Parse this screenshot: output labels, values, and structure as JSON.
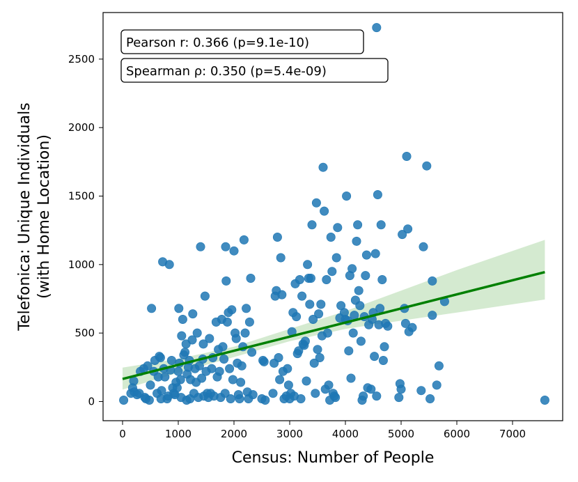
{
  "chart_data": {
    "type": "scatter",
    "xlabel": "Census: Number of People",
    "ylabel_line1": "Telefonica: Unique Individuals",
    "ylabel_line2": "(with Home Location)",
    "xlim": [
      -350,
      7900
    ],
    "ylim": [
      -140,
      2840
    ],
    "xticks": [
      0,
      1000,
      2000,
      3000,
      4000,
      5000,
      6000,
      7000
    ],
    "yticks": [
      0,
      500,
      1000,
      1500,
      2000,
      2500
    ],
    "pearson_text": "Pearson r: 0.366 (p=9.1e-10)",
    "spearman_text": "Spearman ρ: 0.350 (p=5.4e-09)",
    "point_color": "#1f77b4",
    "line_color": "#008000",
    "ci_color": "#b7dcb0",
    "regression": {
      "x_start": 0,
      "y_start": 165,
      "x_end": 7580,
      "y_end": 945
    },
    "confidence_band": {
      "x": [
        0,
        1000,
        2000,
        3000,
        4000,
        5000,
        6000,
        7580
      ],
      "lower": [
        88,
        210,
        325,
        440,
        530,
        590,
        650,
        745
      ],
      "upper": [
        248,
        312,
        400,
        530,
        660,
        810,
        960,
        1180
      ]
    },
    "points": [
      [
        20,
        10
      ],
      [
        150,
        60
      ],
      [
        180,
        100
      ],
      [
        200,
        150
      ],
      [
        210,
        70
      ],
      [
        260,
        50
      ],
      [
        300,
        60
      ],
      [
        320,
        220
      ],
      [
        380,
        240
      ],
      [
        400,
        30
      ],
      [
        420,
        20
      ],
      [
        450,
        260
      ],
      [
        480,
        10
      ],
      [
        500,
        120
      ],
      [
        520,
        680
      ],
      [
        560,
        220
      ],
      [
        580,
        300
      ],
      [
        620,
        60
      ],
      [
        640,
        180
      ],
      [
        660,
        330
      ],
      [
        680,
        320
      ],
      [
        690,
        20
      ],
      [
        700,
        80
      ],
      [
        720,
        1020
      ],
      [
        740,
        240
      ],
      [
        760,
        180
      ],
      [
        800,
        20
      ],
      [
        820,
        40
      ],
      [
        840,
        1000
      ],
      [
        860,
        230
      ],
      [
        880,
        300
      ],
      [
        900,
        100
      ],
      [
        920,
        60
      ],
      [
        940,
        50
      ],
      [
        960,
        140
      ],
      [
        980,
        100
      ],
      [
        1000,
        220
      ],
      [
        1010,
        680
      ],
      [
        1020,
        280
      ],
      [
        1040,
        160
      ],
      [
        1050,
        30
      ],
      [
        1060,
        480
      ],
      [
        1080,
        600
      ],
      [
        1100,
        340
      ],
      [
        1120,
        360
      ],
      [
        1140,
        420
      ],
      [
        1150,
        10
      ],
      [
        1160,
        200
      ],
      [
        1180,
        250
      ],
      [
        1200,
        300
      ],
      [
        1210,
        20
      ],
      [
        1220,
        160
      ],
      [
        1250,
        450
      ],
      [
        1260,
        640
      ],
      [
        1280,
        60
      ],
      [
        1300,
        240
      ],
      [
        1320,
        140
      ],
      [
        1340,
        500
      ],
      [
        1360,
        30
      ],
      [
        1380,
        260
      ],
      [
        1400,
        1130
      ],
      [
        1420,
        170
      ],
      [
        1440,
        310
      ],
      [
        1450,
        420
      ],
      [
        1460,
        40
      ],
      [
        1480,
        770
      ],
      [
        1500,
        220
      ],
      [
        1520,
        60
      ],
      [
        1540,
        30
      ],
      [
        1560,
        460
      ],
      [
        1580,
        60
      ],
      [
        1600,
        240
      ],
      [
        1620,
        320
      ],
      [
        1640,
        40
      ],
      [
        1680,
        580
      ],
      [
        1700,
        180
      ],
      [
        1720,
        380
      ],
      [
        1740,
        220
      ],
      [
        1760,
        30
      ],
      [
        1780,
        600
      ],
      [
        1800,
        400
      ],
      [
        1820,
        310
      ],
      [
        1840,
        60
      ],
      [
        1850,
        1130
      ],
      [
        1860,
        880
      ],
      [
        1880,
        580
      ],
      [
        1900,
        650
      ],
      [
        1920,
        240
      ],
      [
        1940,
        20
      ],
      [
        1960,
        670
      ],
      [
        1980,
        160
      ],
      [
        2000,
        1100
      ],
      [
        2020,
        500
      ],
      [
        2040,
        460
      ],
      [
        2060,
        280
      ],
      [
        2080,
        50
      ],
      [
        2100,
        20
      ],
      [
        2120,
        140
      ],
      [
        2140,
        260
      ],
      [
        2160,
        400
      ],
      [
        2180,
        1180
      ],
      [
        2200,
        500
      ],
      [
        2220,
        680
      ],
      [
        2240,
        70
      ],
      [
        2260,
        20
      ],
      [
        2280,
        580
      ],
      [
        2300,
        900
      ],
      [
        2320,
        360
      ],
      [
        2340,
        50
      ],
      [
        2500,
        20
      ],
      [
        2520,
        300
      ],
      [
        2540,
        290
      ],
      [
        2560,
        10
      ],
      [
        2700,
        60
      ],
      [
        2720,
        280
      ],
      [
        2740,
        770
      ],
      [
        2760,
        810
      ],
      [
        2780,
        1200
      ],
      [
        2800,
        320
      ],
      [
        2820,
        160
      ],
      [
        2840,
        1050
      ],
      [
        2860,
        780
      ],
      [
        2880,
        220
      ],
      [
        2900,
        20
      ],
      [
        2940,
        40
      ],
      [
        2960,
        240
      ],
      [
        2980,
        120
      ],
      [
        3000,
        20
      ],
      [
        3020,
        60
      ],
      [
        3040,
        510
      ],
      [
        3060,
        650
      ],
      [
        3080,
        40
      ],
      [
        3100,
        860
      ],
      [
        3120,
        620
      ],
      [
        3140,
        350
      ],
      [
        3160,
        370
      ],
      [
        3180,
        890
      ],
      [
        3200,
        20
      ],
      [
        3220,
        770
      ],
      [
        3240,
        420
      ],
      [
        3260,
        410
      ],
      [
        3280,
        440
      ],
      [
        3300,
        150
      ],
      [
        3320,
        1000
      ],
      [
        3340,
        900
      ],
      [
        3360,
        710
      ],
      [
        3380,
        900
      ],
      [
        3400,
        1290
      ],
      [
        3420,
        600
      ],
      [
        3440,
        280
      ],
      [
        3460,
        60
      ],
      [
        3480,
        1450
      ],
      [
        3500,
        380
      ],
      [
        3520,
        640
      ],
      [
        3540,
        320
      ],
      [
        3560,
        710
      ],
      [
        3580,
        480
      ],
      [
        3600,
        1710
      ],
      [
        3620,
        1390
      ],
      [
        3640,
        90
      ],
      [
        3660,
        890
      ],
      [
        3680,
        500
      ],
      [
        3700,
        120
      ],
      [
        3720,
        10
      ],
      [
        3740,
        1200
      ],
      [
        3760,
        950
      ],
      [
        3780,
        60
      ],
      [
        3800,
        40
      ],
      [
        3820,
        30
      ],
      [
        3840,
        1050
      ],
      [
        3860,
        1270
      ],
      [
        3900,
        610
      ],
      [
        3920,
        700
      ],
      [
        3980,
        650
      ],
      [
        4000,
        600
      ],
      [
        4020,
        1500
      ],
      [
        4040,
        590
      ],
      [
        4060,
        370
      ],
      [
        4080,
        920
      ],
      [
        4100,
        170
      ],
      [
        4120,
        970
      ],
      [
        4140,
        500
      ],
      [
        4160,
        630
      ],
      [
        4180,
        740
      ],
      [
        4200,
        1170
      ],
      [
        4220,
        1290
      ],
      [
        4240,
        810
      ],
      [
        4260,
        700
      ],
      [
        4280,
        440
      ],
      [
        4300,
        10
      ],
      [
        4320,
        40
      ],
      [
        4340,
        620
      ],
      [
        4360,
        920
      ],
      [
        4380,
        1070
      ],
      [
        4400,
        100
      ],
      [
        4420,
        560
      ],
      [
        4460,
        90
      ],
      [
        4480,
        600
      ],
      [
        4500,
        650
      ],
      [
        4520,
        330
      ],
      [
        4540,
        1080
      ],
      [
        4560,
        40
      ],
      [
        4580,
        1510
      ],
      [
        4600,
        560
      ],
      [
        4620,
        680
      ],
      [
        4640,
        1290
      ],
      [
        4660,
        890
      ],
      [
        4680,
        300
      ],
      [
        4700,
        400
      ],
      [
        4720,
        570
      ],
      [
        4760,
        550
      ],
      [
        4960,
        30
      ],
      [
        4980,
        130
      ],
      [
        5000,
        90
      ],
      [
        5020,
        1220
      ],
      [
        5060,
        680
      ],
      [
        5080,
        570
      ],
      [
        5100,
        1790
      ],
      [
        5120,
        1260
      ],
      [
        5140,
        510
      ],
      [
        5200,
        540
      ],
      [
        5360,
        80
      ],
      [
        5400,
        1130
      ],
      [
        5460,
        1720
      ],
      [
        5520,
        20
      ],
      [
        5560,
        630
      ],
      [
        5560,
        880
      ],
      [
        5640,
        120
      ],
      [
        5680,
        260
      ],
      [
        5780,
        730
      ],
      [
        7580,
        10
      ],
      [
        4560,
        2730
      ]
    ]
  }
}
